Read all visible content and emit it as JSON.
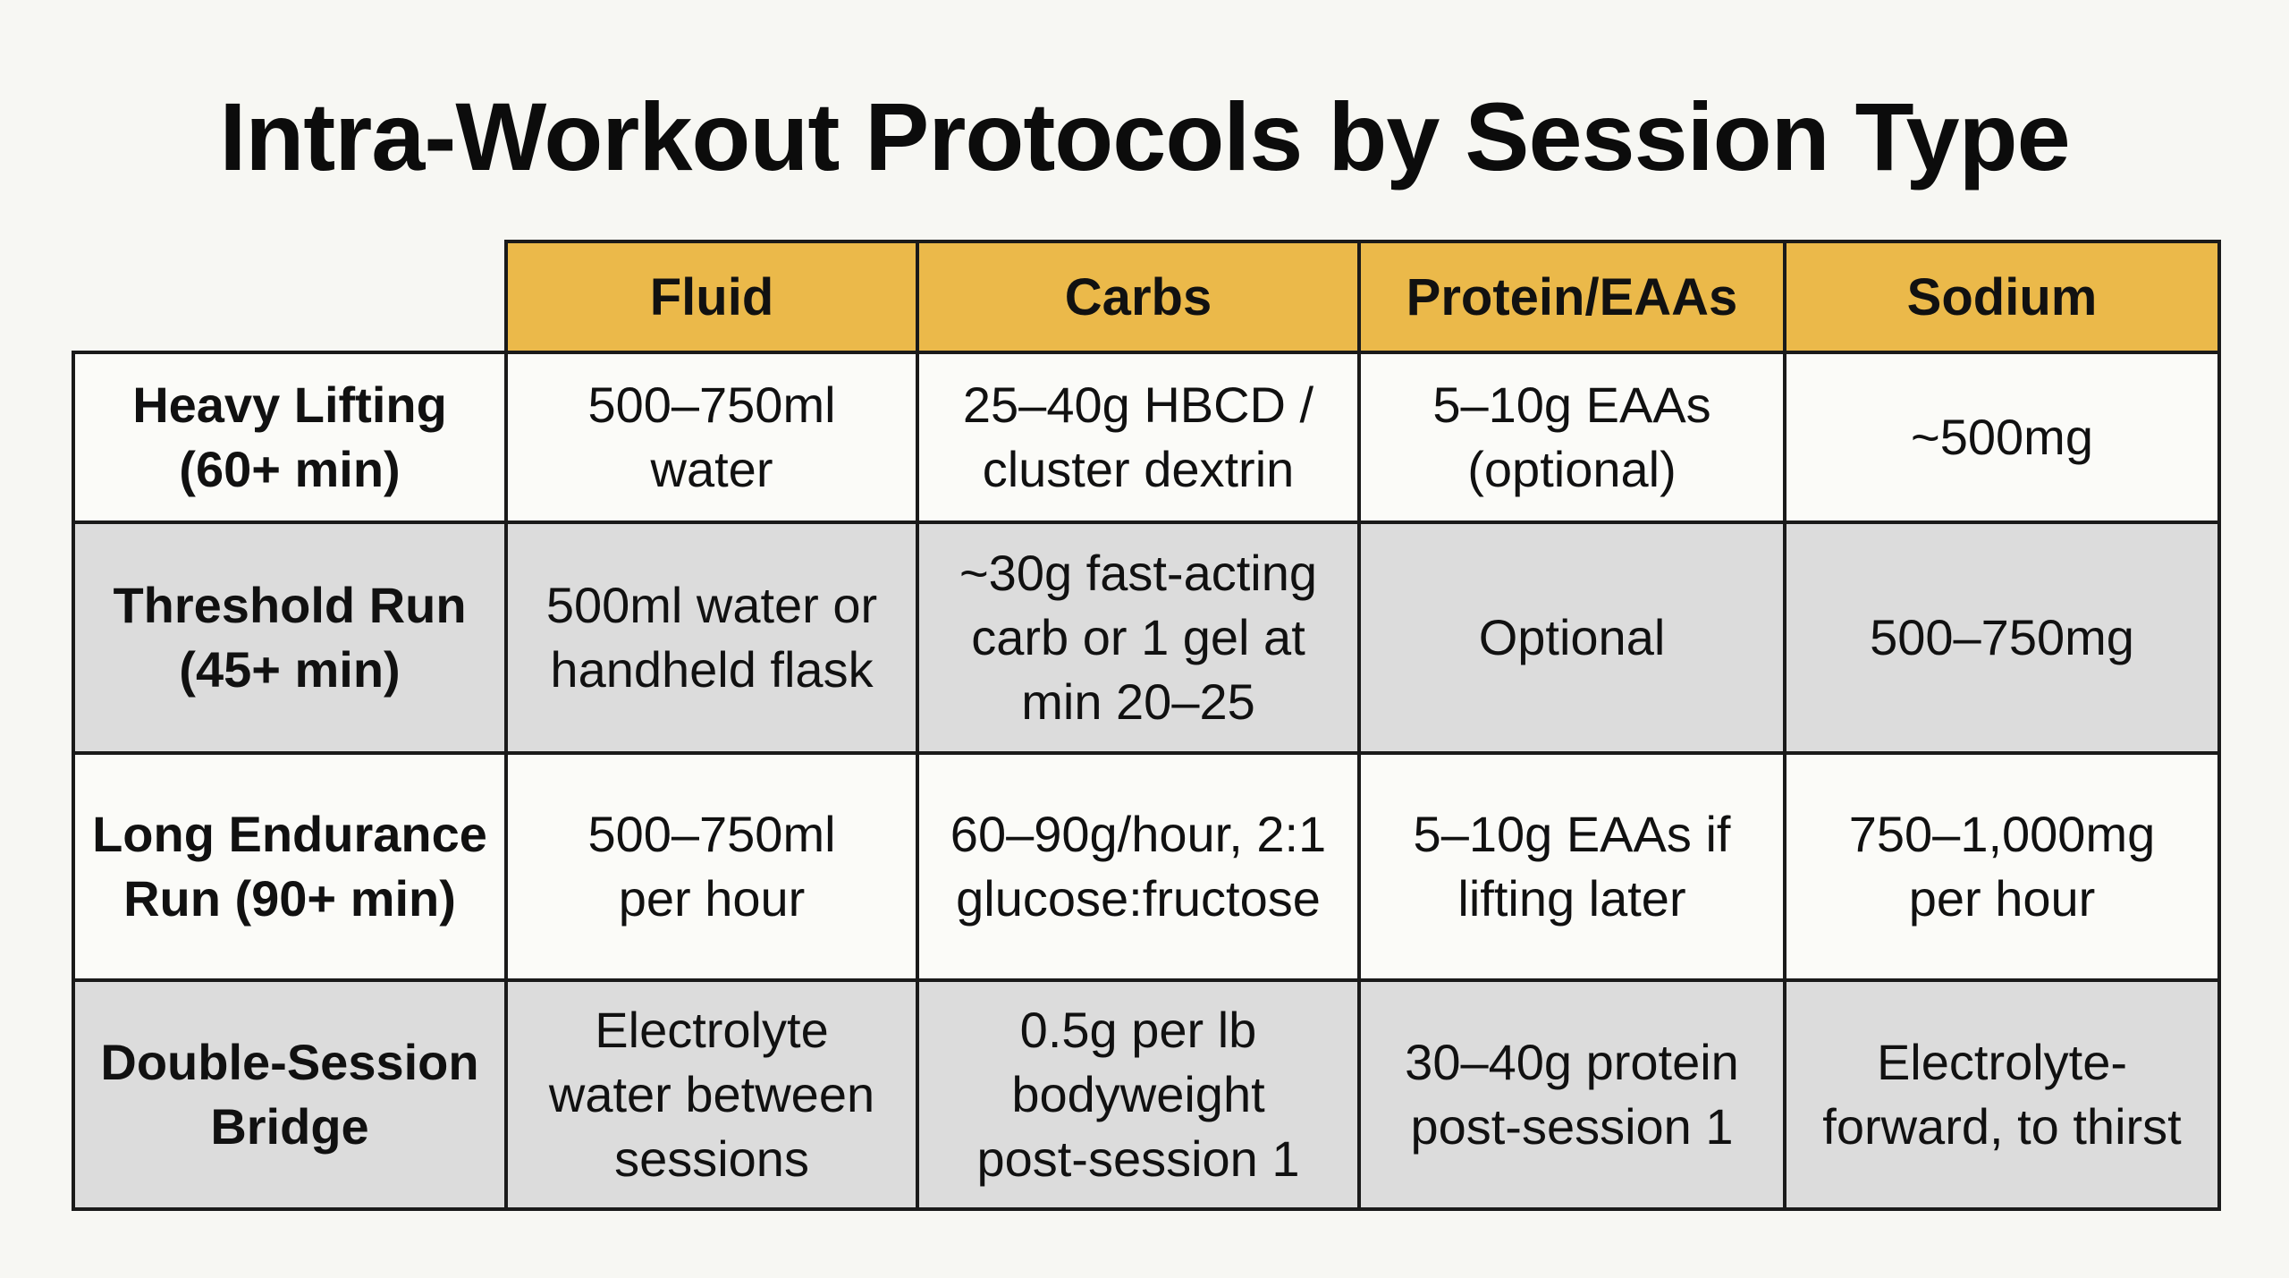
{
  "title": "Intra-Workout Protocols by Session Type",
  "columns": [
    "Fluid",
    "Carbs",
    "Protein/EAAs",
    "Sodium"
  ],
  "rows": [
    {
      "label": "Heavy Lifting\n(60+ min)",
      "cells": [
        "500–750ml\nwater",
        "25–40g HBCD /\ncluster dextrin",
        "5–10g EAAs\n(optional)",
        "~500mg"
      ]
    },
    {
      "label": "Threshold Run\n(45+ min)",
      "cells": [
        "500ml water or\nhandheld flask",
        "~30g fast-acting\ncarb or 1 gel at\nmin 20–25",
        "Optional",
        "500–750mg"
      ]
    },
    {
      "label": "Long Endurance\nRun (90+ min)",
      "cells": [
        "500–750ml\nper hour",
        "60–90g/hour, 2:1\nglucose:fructose",
        "5–10g EAAs if\nlifting later",
        "750–1,000mg\nper hour"
      ]
    },
    {
      "label": "Double-Session\nBridge",
      "cells": [
        "Electrolyte\nwater between\nsessions",
        "0.5g per lb\nbodyweight\npost-session 1",
        "30–40g protein\npost-session 1",
        "Electrolyte-\nforward, to thirst"
      ]
    }
  ],
  "colors": {
    "header_bg": "#ebb94a",
    "row_light": "#fbfbf8",
    "row_dark": "#dcdcdc",
    "border": "#1a1a1a",
    "page_bg": "#f7f7f3"
  }
}
